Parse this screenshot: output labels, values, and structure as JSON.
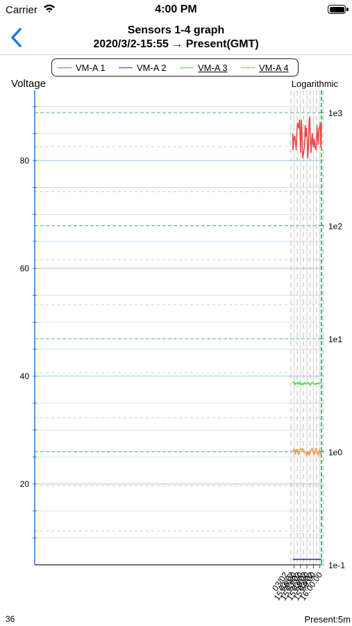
{
  "status_bar": {
    "carrier": "Carrier",
    "time": "4:00 PM"
  },
  "nav": {
    "back_icon": "chevron-left-icon",
    "title_line1": "Sensors 1-4 graph",
    "title_line2": "2020/3/2-15:55 → Present(GMT)"
  },
  "colors": {
    "accent": "#1a7ad8",
    "vm_a1": "#e84a4a",
    "vm_a2": "#3030c8",
    "vm_a3": "#44dd44",
    "vm_a4": "#f0a050",
    "right_axis": "#2a9a5a"
  },
  "legend": [
    {
      "label": "VM-A 1",
      "color": "#e84a4a",
      "underline": false
    },
    {
      "label": "VM-A 2",
      "color": "#3030c8",
      "underline": false
    },
    {
      "label": "VM-A 3",
      "color": "#44dd44",
      "underline": true
    },
    {
      "label": "VM-A 4",
      "color": "#f0a050",
      "underline": true
    }
  ],
  "axis_titles": {
    "left": "Voltage",
    "right": "Logarithmic"
  },
  "footer": {
    "left": "36",
    "right": "Present:5m"
  },
  "chart_data": {
    "type": "line",
    "y_left": {
      "ylim": [
        5,
        93
      ],
      "ticks": [
        20,
        40,
        60,
        80
      ],
      "tick_labels": [
        "20",
        "40",
        "60",
        "80"
      ]
    },
    "y_right": {
      "scale": "log",
      "range": [
        0.1,
        1000
      ],
      "ticks": [
        0.1,
        1,
        10,
        100,
        1000
      ],
      "tick_labels": [
        "1e-1",
        "1e0",
        "1e1",
        "1e2",
        "1e3"
      ]
    },
    "x": {
      "range_minutes": [
        15.8,
        60.25
      ],
      "ticks": [
        "15:56:00",
        "15:57:00",
        "15:58:00",
        "15:59:00",
        "16:00:00"
      ],
      "tick_labels": [
        [
          "03/02",
          "15:56:00"
        ],
        [
          "03/02",
          "15:57:00"
        ],
        [
          "03/02",
          "15:58:00"
        ],
        [
          "03/02",
          "15:59:00"
        ],
        [
          "03/02",
          "16:00:00"
        ]
      ]
    },
    "x_values": [
      "15:55:48",
      "15:55:49",
      "15:55:55",
      "15:56:01",
      "15:56:07",
      "15:56:13",
      "15:56:19",
      "15:56:26",
      "15:56:32",
      "15:56:38",
      "15:56:44",
      "15:56:50",
      "15:56:56",
      "15:57:02",
      "15:57:08",
      "15:57:14",
      "15:57:20",
      "15:57:26",
      "15:57:32",
      "15:57:38",
      "15:57:44",
      "15:57:50",
      "15:57:56",
      "15:58:02",
      "15:58:08",
      "15:58:14",
      "15:58:20",
      "15:58:26",
      "15:58:32",
      "15:58:38",
      "15:58:44",
      "15:58:50",
      "15:58:56",
      "15:59:02",
      "15:59:08",
      "15:59:15",
      "15:59:21",
      "15:59:27",
      "15:59:33",
      "15:59:39",
      "15:59:45",
      "15:59:51",
      "15:59:57",
      "16:00:03",
      "16:00:09",
      "16:00:15"
    ],
    "series": [
      {
        "name": "VM-A 1",
        "color": "#e84a4a",
        "values": [
          85,
          82,
          83,
          84.5,
          84.5,
          83.5,
          82,
          85,
          87,
          86.5,
          86,
          87.5,
          84.5,
          81.5,
          87.5,
          85.5,
          80.5,
          81,
          82,
          82.5,
          86.5,
          84.5,
          86,
          84,
          80.5,
          82.5,
          87.5,
          88,
          84.5,
          81.5,
          83.5,
          85,
          83,
          82.5,
          84,
          83,
          82,
          82.5,
          86.5,
          84.5,
          83,
          86,
          86,
          87,
          82.5,
          86.5
        ]
      },
      {
        "name": "VM-A 2",
        "color": "#3030c8",
        "values": [
          6,
          6,
          6,
          6,
          6,
          6,
          6,
          6,
          6,
          6,
          6,
          6,
          6,
          6,
          6,
          6,
          6,
          6,
          6,
          6,
          6,
          6,
          6,
          6,
          6,
          6,
          6,
          6,
          6,
          6,
          6,
          6,
          6,
          6,
          6,
          6,
          6,
          6,
          6,
          6,
          6,
          6,
          6,
          6,
          6,
          6
        ]
      },
      {
        "name": "VM-A 3",
        "color": "#44dd44",
        "values": [
          38.7,
          38.8,
          38.9,
          38.8,
          38.4,
          38.6,
          38.7,
          38.7,
          38.7,
          38.8,
          38.5,
          38.6,
          38.9,
          38.5,
          38.4,
          38.6,
          38.6,
          38.5,
          38.7,
          38.8,
          38.6,
          38.5,
          38.6,
          38.7,
          38.7,
          38.8,
          38.5,
          38.4,
          38.4,
          38.6,
          38.7,
          38.8,
          38.7,
          38.6,
          38.5,
          38.6,
          38.5,
          38.6,
          38.6,
          38.7,
          38.7,
          38.6,
          38.6,
          38.7,
          38.7,
          38.7
        ]
      },
      {
        "name": "VM-A 4",
        "color": "#f0a050",
        "values": [
          26,
          26,
          26.2,
          26.4,
          26.3,
          25.5,
          26.4,
          26.1,
          26.4,
          26.2,
          25.4,
          25.9,
          26.4,
          26.5,
          26.3,
          26.4,
          26.6,
          26.1,
          26.3,
          25.8,
          25.9,
          25.8,
          25.2,
          26.1,
          25.5,
          25.9,
          25.3,
          26.0,
          25.7,
          26.2,
          26.5,
          26.6,
          25.9,
          26.1,
          25.4,
          25.8,
          26.6,
          26.6,
          26.0,
          25.8,
          25.2,
          26.0,
          26.4,
          25.5,
          25.8,
          25.5
        ]
      }
    ]
  }
}
